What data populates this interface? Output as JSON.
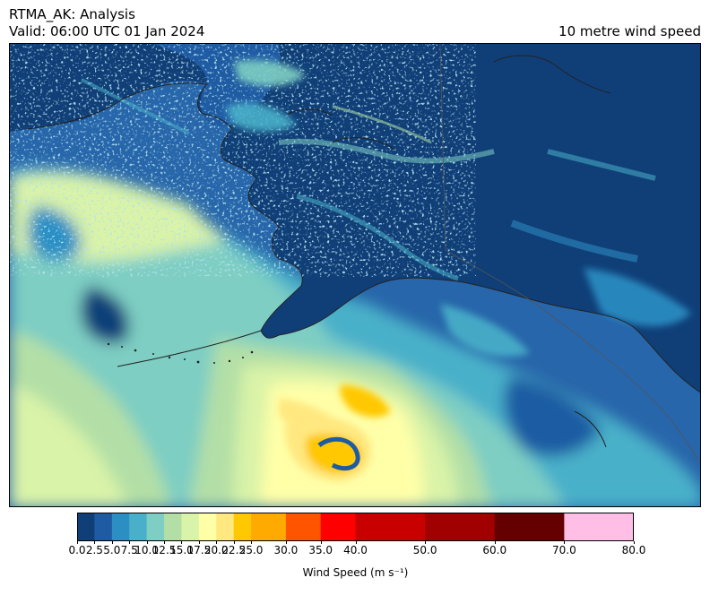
{
  "header": {
    "title_line1": "RTMA_AK: Analysis",
    "title_line2": "Valid: 06:00 UTC 01 Jan 2024",
    "field_name": "10 metre wind speed"
  },
  "colorbar": {
    "label": "Wind Speed (m s⁻¹)",
    "bounds": [
      0.0,
      2.5,
      5.0,
      7.5,
      10.0,
      12.5,
      15.0,
      17.5,
      20.0,
      22.5,
      25.0,
      30.0,
      35.0,
      40.0,
      50.0,
      60.0,
      70.0,
      80.0
    ],
    "tick_labels": [
      "0.0",
      "2.5",
      "5.0",
      "7.5",
      "10.0",
      "12.5",
      "15.0",
      "17.5",
      "20.0",
      "22.5",
      "25.0",
      "30.0",
      "35.0",
      "40.0",
      "50.0",
      "60.0",
      "70.0",
      "80.0"
    ],
    "colors": [
      "#103f78",
      "#1f5ba3",
      "#2c8fc4",
      "#4ab0c9",
      "#7ecec3",
      "#b3dfa6",
      "#d9f3a8",
      "#ffffa8",
      "#ffe880",
      "#ffc800",
      "#ffaa00",
      "#ff5500",
      "#ff0000",
      "#c80000",
      "#a00000",
      "#640000",
      "#ffbee6",
      "#ff78dc"
    ]
  },
  "map": {
    "region": "Alaska",
    "colors": {
      "land_low": "#103f78",
      "ocean_calm": "#2766aa",
      "coast_line": "#222222"
    }
  }
}
